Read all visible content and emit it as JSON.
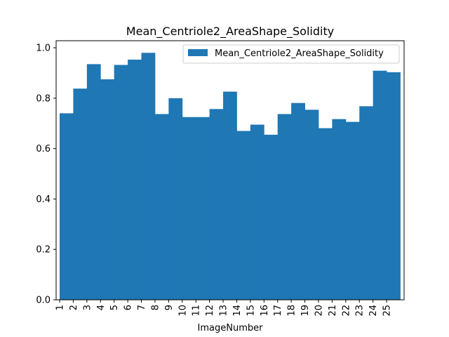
{
  "chart_data": {
    "type": "bar",
    "title": "Mean_Centriole2_AreaShape_Solidity",
    "xlabel": "ImageNumber",
    "ylabel": "",
    "categories": [
      "1",
      "2",
      "3",
      "4",
      "5",
      "6",
      "7",
      "8",
      "9",
      "10",
      "11",
      "12",
      "13",
      "14",
      "15",
      "16",
      "17",
      "18",
      "19",
      "20",
      "21",
      "22",
      "23",
      "24",
      "25"
    ],
    "series": [
      {
        "name": "Mean_Centriole2_AreaShape_Solidity",
        "color": "#1f77b4",
        "values": [
          0.74,
          0.838,
          0.935,
          0.875,
          0.932,
          0.953,
          0.98,
          0.737,
          0.8,
          0.725,
          0.725,
          0.757,
          0.826,
          0.67,
          0.695,
          0.655,
          0.737,
          0.781,
          0.754,
          0.681,
          0.717,
          0.706,
          0.768,
          0.909,
          0.903
        ]
      }
    ],
    "y_ticks": [
      "0.0",
      "0.2",
      "0.4",
      "0.6",
      "0.8",
      "1.0"
    ],
    "ylim": [
      0,
      1.028
    ],
    "grid": false,
    "legend_position": "top-right"
  }
}
